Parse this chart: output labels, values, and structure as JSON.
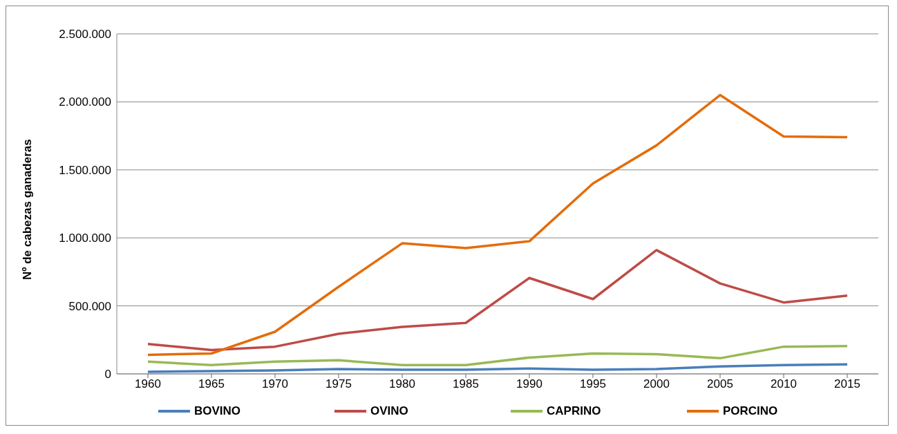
{
  "chart_data": {
    "type": "line",
    "ylabel": "Nº de cabezas ganaderas",
    "categories": [
      "1960",
      "1965",
      "1970",
      "1975",
      "1980",
      "1985",
      "1990",
      "1995",
      "2000",
      "2005",
      "2010",
      "2015"
    ],
    "series": [
      {
        "name": "BOVINO",
        "color": "#4a7ebb",
        "values": [
          15000,
          20000,
          25000,
          35000,
          30000,
          30000,
          40000,
          30000,
          35000,
          55000,
          65000,
          70000
        ]
      },
      {
        "name": "OVINO",
        "color": "#be4b48",
        "values": [
          220000,
          175000,
          200000,
          295000,
          345000,
          375000,
          705000,
          550000,
          910000,
          665000,
          525000,
          575000
        ]
      },
      {
        "name": "CAPRINO",
        "color": "#98b954",
        "values": [
          90000,
          65000,
          90000,
          100000,
          65000,
          65000,
          120000,
          150000,
          145000,
          115000,
          200000,
          205000
        ]
      },
      {
        "name": "PORCINO",
        "color": "#e46c0a",
        "values": [
          140000,
          150000,
          310000,
          640000,
          960000,
          925000,
          975000,
          1400000,
          1680000,
          2050000,
          1745000,
          1740000
        ]
      }
    ],
    "ylim": [
      0,
      2500000
    ],
    "yticks": [
      0,
      {
        "value": 500000,
        "label": "500.000"
      },
      {
        "value": 1000000,
        "label": "1.000.000"
      },
      {
        "value": 1500000,
        "label": "1.500.000"
      },
      {
        "value": 2000000,
        "label": "2.000.000"
      },
      {
        "value": 2500000,
        "label": "2.500.000"
      }
    ],
    "grid": "y",
    "legend": "bottom",
    "marker": "none",
    "line_style": "solid"
  }
}
